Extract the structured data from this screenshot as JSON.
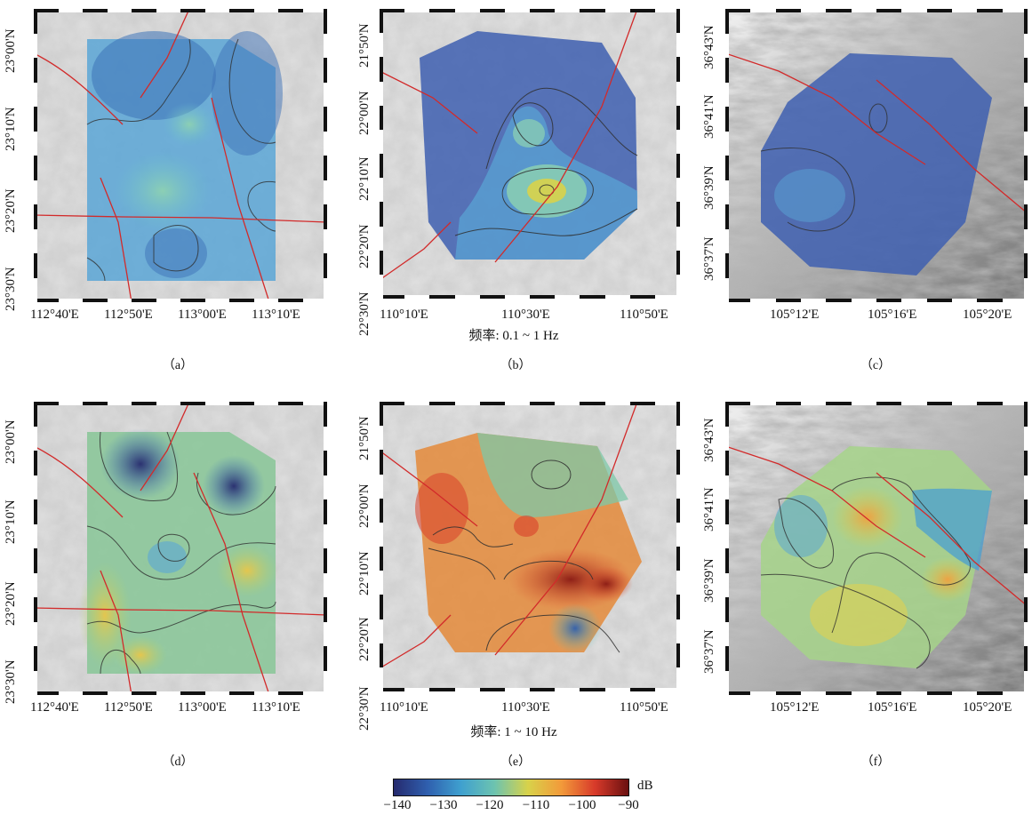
{
  "panels": [
    {
      "id": "a",
      "caption": "（a）",
      "xticks": [
        "112°40'E",
        "112°50'E",
        "113°00'E",
        "113°10'E"
      ],
      "yticks": [
        "23°00'N",
        "23°10'N",
        "23°20'N",
        "23°30'N"
      ],
      "band": "0.1-1 Hz"
    },
    {
      "id": "b",
      "caption": "（b）",
      "xticks": [
        "110°10'E",
        "110°30'E",
        "110°50'E"
      ],
      "yticks": [
        "21°50'N",
        "22°00'N",
        "22°10'N",
        "22°20'N",
        "22°30'N"
      ],
      "band": "0.1-1 Hz"
    },
    {
      "id": "c",
      "caption": "（c）",
      "xticks": [
        "105°12'E",
        "105°16'E",
        "105°20'E"
      ],
      "yticks": [
        "36°43'N",
        "36°41'N",
        "36°39'N",
        "36°37'N"
      ],
      "band": "0.1-1 Hz"
    },
    {
      "id": "d",
      "caption": "（d）",
      "xticks": [
        "112°40'E",
        "112°50'E",
        "113°00'E",
        "113°10'E"
      ],
      "yticks": [
        "23°00'N",
        "23°10'N",
        "23°20'N",
        "23°30'N"
      ],
      "band": "1-10 Hz"
    },
    {
      "id": "e",
      "caption": "（e）",
      "xticks": [
        "110°10'E",
        "110°30'E",
        "110°50'E"
      ],
      "yticks": [
        "21°50'N",
        "22°00'N",
        "22°10'N",
        "22°20'N",
        "22°30'N"
      ],
      "band": "1-10 Hz"
    },
    {
      "id": "f",
      "caption": "（f）",
      "xticks": [
        "105°12'E",
        "105°16'E",
        "105°20'E"
      ],
      "yticks": [
        "36°43'N",
        "36°41'N",
        "36°39'N",
        "36°37'N"
      ],
      "band": "1-10 Hz"
    }
  ],
  "freq_labels": {
    "top": "频率: 0.1 ~ 1 Hz",
    "bottom": "频率: 1 ~ 10 Hz"
  },
  "colorbar": {
    "unit": "dB",
    "ticks": [
      "−140",
      "−130",
      "−120",
      "−110",
      "−100",
      "−90"
    ],
    "colors": [
      "#262a6e",
      "#2f5fae",
      "#3fa0cf",
      "#6cc3b0",
      "#d8d24a",
      "#f29a3a",
      "#d83a2a",
      "#6a1010"
    ]
  },
  "colors": {
    "fault": "#d22a2a",
    "contour": "#2f2f2f",
    "terrain_light": "#e4e4e4",
    "terrain_dark": "#8a8a8a"
  }
}
